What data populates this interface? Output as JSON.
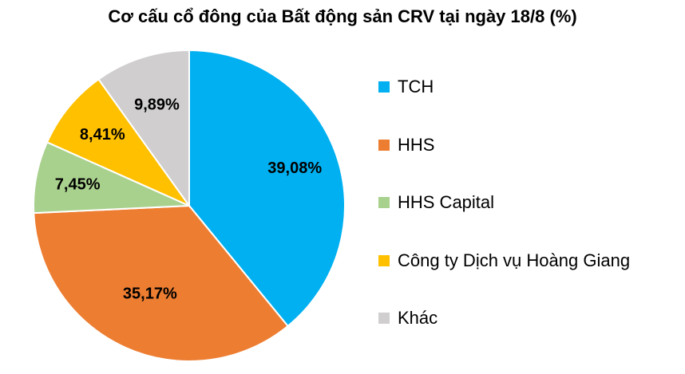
{
  "chart_data": {
    "type": "pie",
    "title": "Cơ cấu cổ đông của Bất động sản CRV tại ngày 18/8 (%)",
    "series": [
      {
        "name": "TCH",
        "value": 39.08,
        "label": "39,08%",
        "color": "#00B0F0"
      },
      {
        "name": "HHS",
        "value": 35.17,
        "label": "35,17%",
        "color": "#ED7D31"
      },
      {
        "name": "HHS Capital",
        "value": 7.45,
        "label": "7,45%",
        "color": "#A9D18E"
      },
      {
        "name": "Công ty Dịch vụ Hoàng Giang",
        "value": 8.41,
        "label": "8,41%",
        "color": "#FFC000"
      },
      {
        "name": "Khác",
        "value": 9.89,
        "label": "9,89%",
        "color": "#D0CECE"
      }
    ],
    "start_angle": "12 o'clock",
    "direction": "clockwise",
    "legend_position": "right"
  }
}
